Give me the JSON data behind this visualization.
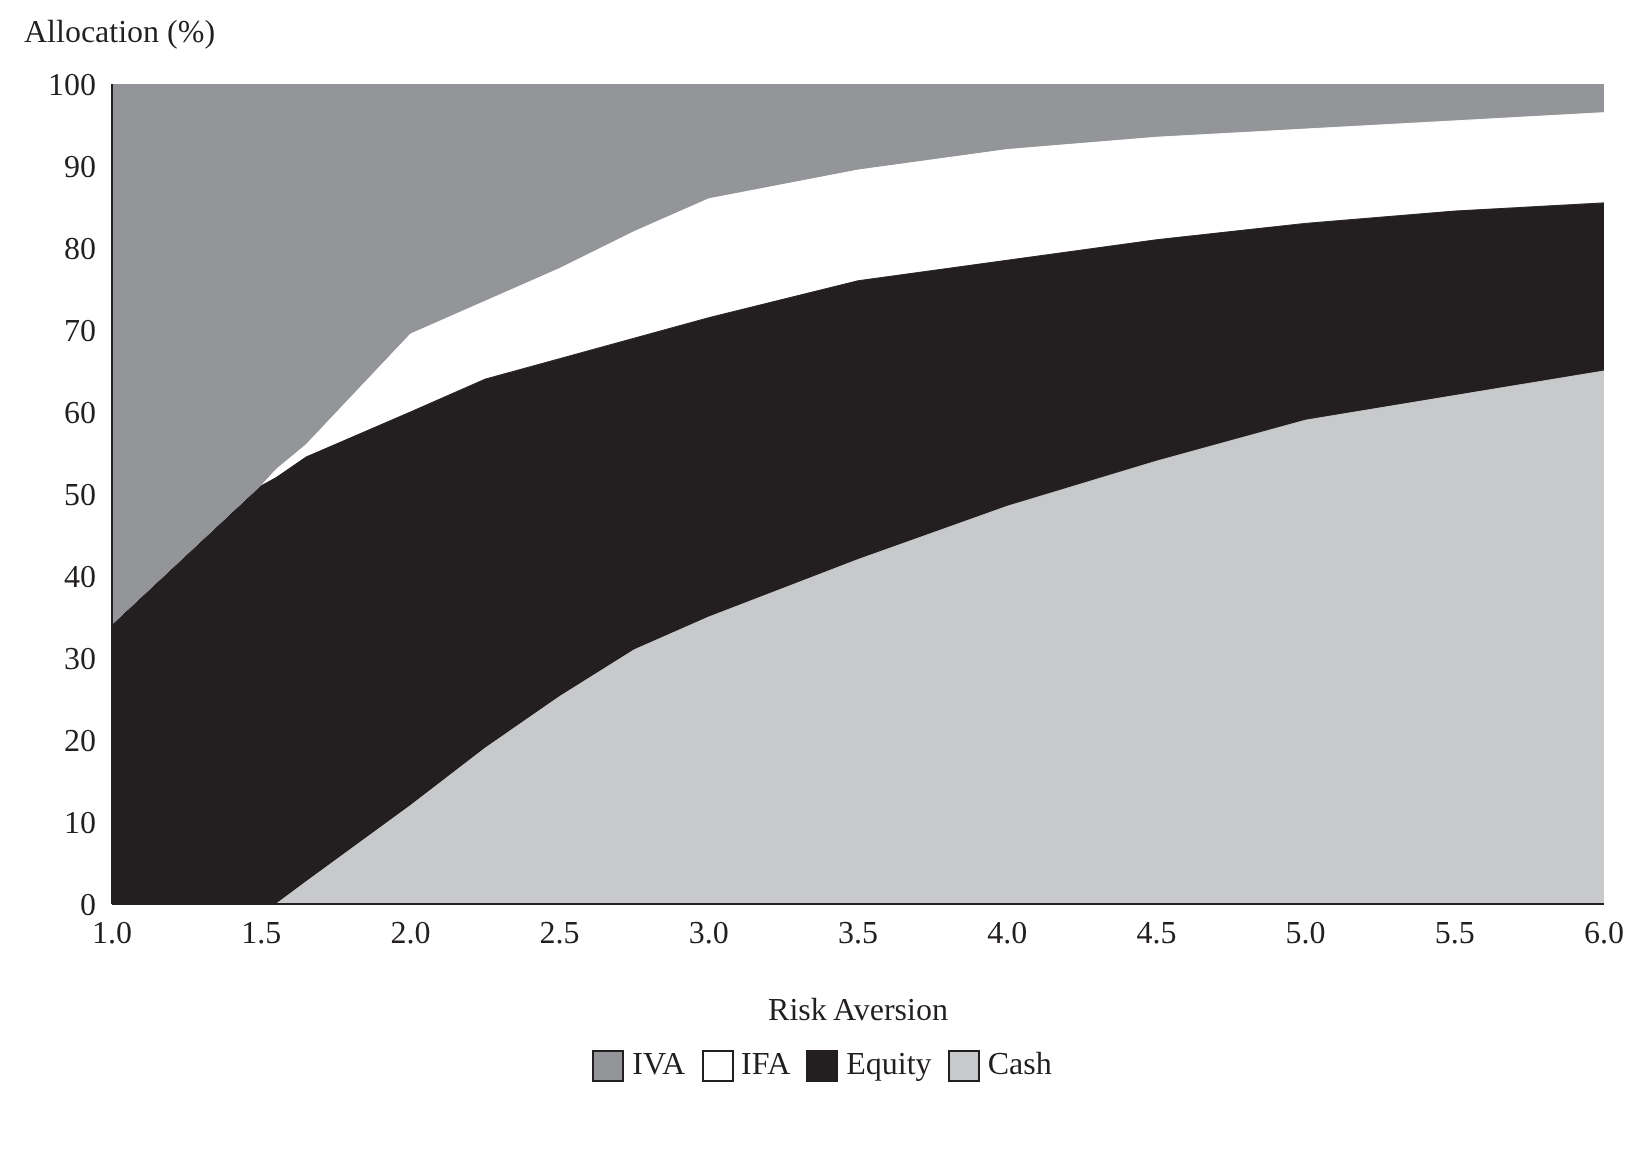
{
  "chart_data": {
    "type": "area",
    "stacked": true,
    "xlabel": "Risk Aversion",
    "ylabel": "Allocation (%)",
    "x": [
      1.0,
      1.5,
      1.55,
      1.65,
      2.0,
      2.25,
      2.5,
      2.75,
      3.0,
      3.5,
      4.0,
      4.5,
      5.0,
      5.5,
      6.0
    ],
    "series": [
      {
        "name": "Cash",
        "color": "#c8c9cb",
        "values": [
          0,
          0,
          0,
          2.7,
          12,
          19,
          25.3,
          31,
          35,
          42,
          48.5,
          54,
          59,
          62,
          65
        ]
      },
      {
        "name": "Equity",
        "color": "#231f20",
        "values": [
          34,
          51,
          52,
          51.8,
          48,
          45,
          41.2,
          38,
          36.5,
          34,
          30,
          27,
          24,
          22.5,
          20.5
        ]
      },
      {
        "name": "IFA",
        "color": "#ffffff",
        "values": [
          0,
          0,
          1,
          1.5,
          9.5,
          9.5,
          11,
          13,
          14.5,
          13.5,
          13.5,
          12.5,
          11.5,
          11,
          11
        ]
      },
      {
        "name": "IVA",
        "color": "#939598",
        "values": [
          66,
          49,
          47,
          44,
          30.5,
          26.5,
          22.5,
          18,
          14,
          10.5,
          8,
          6.5,
          5.5,
          4.5,
          3.5
        ]
      }
    ],
    "xlim": [
      1.0,
      6.0
    ],
    "xticks": [
      {
        "value": 1,
        "label": "1.0"
      },
      {
        "value": 1.5,
        "label": "1.5"
      },
      {
        "value": 2,
        "label": "2.0"
      },
      {
        "value": 2.5,
        "label": "2.5"
      },
      {
        "value": 3,
        "label": "3.0"
      },
      {
        "value": 3.5,
        "label": "3.5"
      },
      {
        "value": 4,
        "label": "4.0"
      },
      {
        "value": 4.5,
        "label": "4.5"
      },
      {
        "value": 5,
        "label": "5.0"
      },
      {
        "value": 5.5,
        "label": "5.5"
      },
      {
        "value": 6,
        "label": "6.0"
      }
    ],
    "ylim": [
      0,
      100
    ],
    "yticks": [
      0,
      10,
      20,
      30,
      40,
      50,
      60,
      70,
      80,
      90,
      100
    ],
    "grid": false,
    "legend": "bottom"
  }
}
